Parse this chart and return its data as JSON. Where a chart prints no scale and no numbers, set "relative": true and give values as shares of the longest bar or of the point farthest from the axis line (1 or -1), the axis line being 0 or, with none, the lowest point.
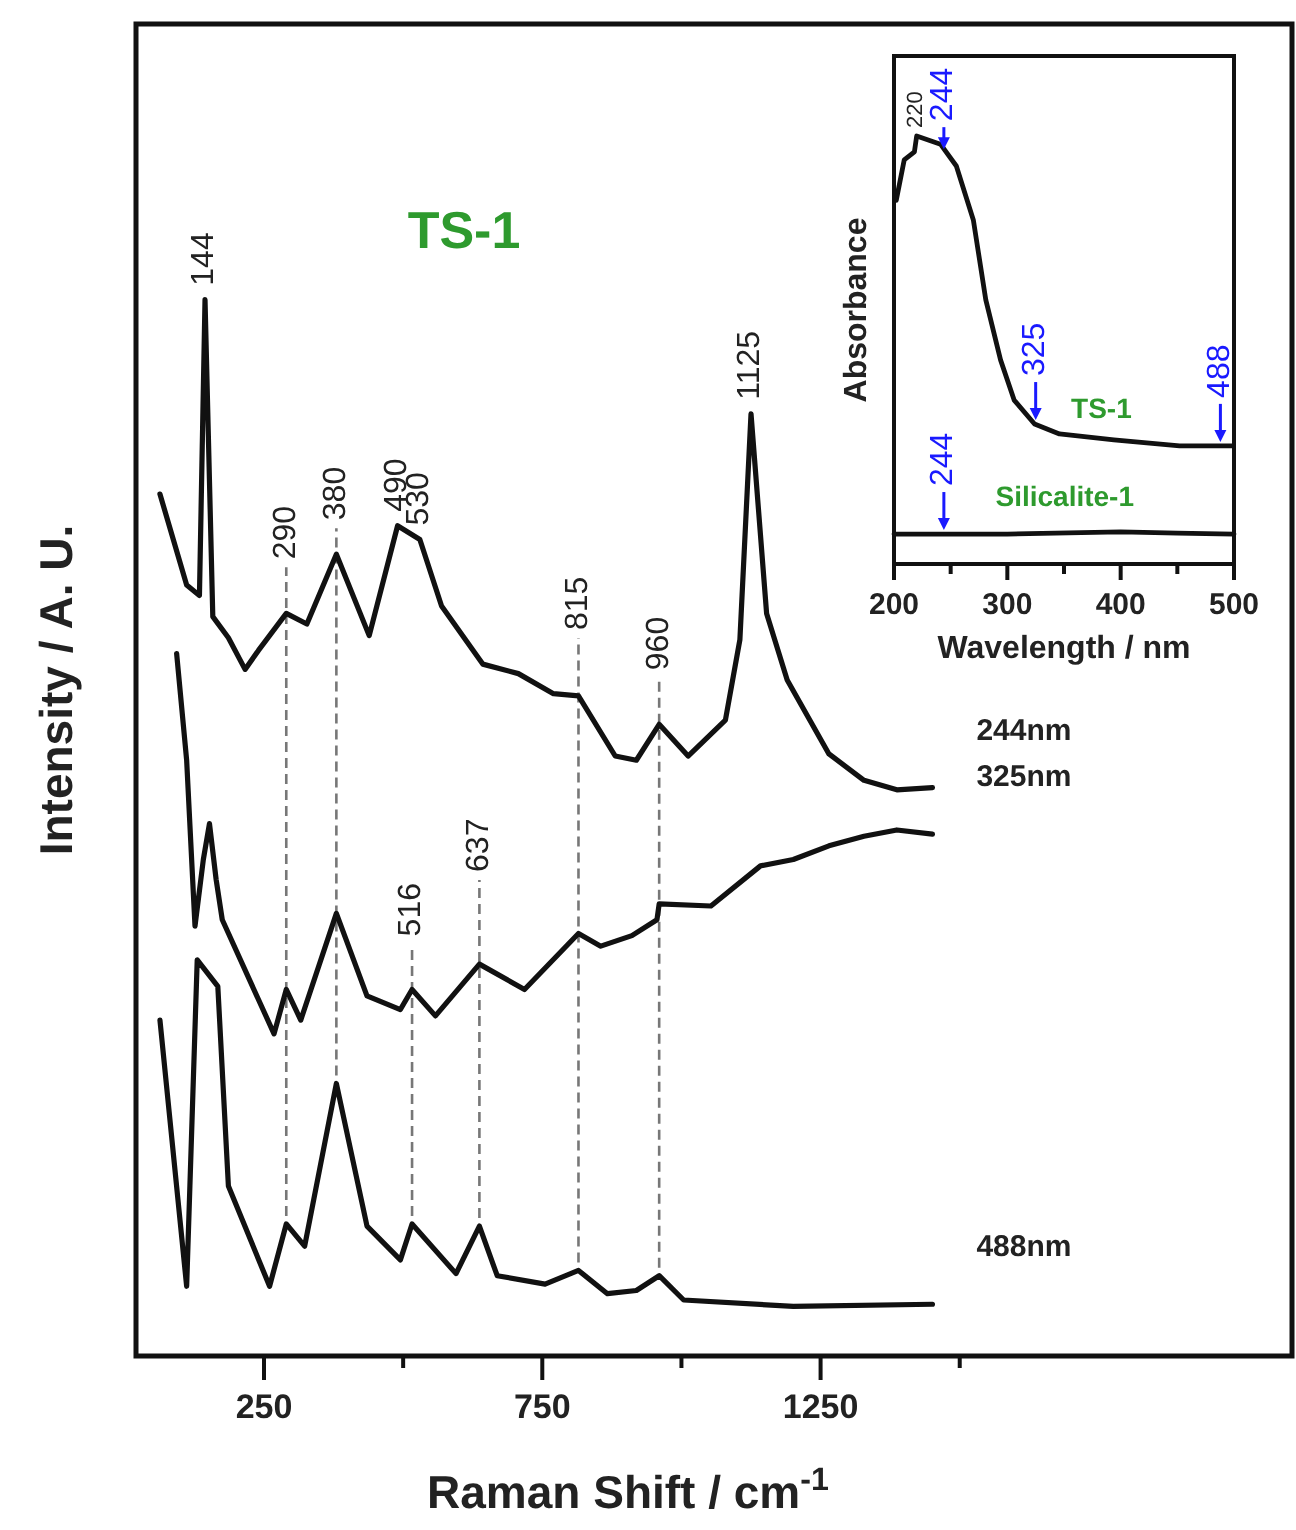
{
  "chart_data": [
    {
      "type": "line",
      "title": "TS-1",
      "xlabel": "Raman Shift / cm$^{-1}$",
      "ylabel": "Intensity / A. U.",
      "relative": true,
      "xlim": [
        20,
        2097
      ],
      "xticks": [
        250,
        {
          "value": 500,
          "label": null
        },
        750,
        {
          "value": 1000,
          "label": null
        },
        1250,
        {
          "value": 1500,
          "label": null
        }
      ],
      "series": [
        {
          "name": "244nm",
          "color": "#111111",
          "x": [
            63,
            111,
            134,
            144,
            158,
            186,
            216,
            240,
            290,
            327,
            380,
            439,
            490,
            530,
            569,
            643,
            707,
            770,
            815,
            881,
            919,
            960,
            1012,
            1079,
            1105,
            1125,
            1153,
            1190,
            1265,
            1328,
            1387,
            1451
          ],
          "values": [
            0.816,
            0.73,
            0.72,
            1.0,
            0.7,
            0.68,
            0.65,
            0.668,
            0.703,
            0.693,
            0.759,
            0.682,
            0.786,
            0.773,
            0.71,
            0.655,
            0.646,
            0.627,
            0.625,
            0.568,
            0.564,
            0.598,
            0.568,
            0.602,
            0.678,
            0.892,
            0.703,
            0.64,
            0.57,
            0.545,
            0.536,
            0.538
          ]
        },
        {
          "name": "325nm",
          "color": "#111111",
          "x": [
            93,
            111,
            126,
            141,
            152,
            164,
            175,
            268,
            290,
            316,
            380,
            435,
            495,
            516,
            558,
            637,
            718,
            815,
            855,
            911,
            956,
            960,
            1053,
            1142,
            1201,
            1265,
            1328,
            1387,
            1451
          ],
          "values": [
            0.665,
            0.564,
            0.407,
            0.47,
            0.504,
            0.451,
            0.413,
            0.305,
            0.347,
            0.318,
            0.419,
            0.341,
            0.328,
            0.347,
            0.322,
            0.371,
            0.347,
            0.4,
            0.388,
            0.398,
            0.413,
            0.428,
            0.426,
            0.464,
            0.47,
            0.483,
            0.492,
            0.498,
            0.494
          ]
        },
        {
          "name": "488nm",
          "color": "#111111",
          "x": [
            63,
            111,
            130,
            167,
            186,
            260,
            290,
            323,
            380,
            435,
            495,
            516,
            595,
            637,
            669,
            755,
            815,
            867,
            919,
            960,
            1004,
            1201,
            1451
          ],
          "values": [
            0.318,
            0.066,
            0.375,
            0.35,
            0.161,
            0.066,
            0.125,
            0.104,
            0.258,
            0.123,
            0.091,
            0.125,
            0.078,
            0.123,
            0.076,
            0.068,
            0.081,
            0.059,
            0.062,
            0.076,
            0.053,
            0.047,
            0.049
          ]
        }
      ],
      "annotations": [
        {
          "text": "144",
          "x": 144,
          "y": 1.0
        },
        {
          "text": "290",
          "x": 290,
          "y": 0.741
        },
        {
          "text": "380",
          "x": 380,
          "y": 0.778
        },
        {
          "text": "490",
          "x": 490,
          "y": 0.786
        },
        {
          "text": "530",
          "x": 530,
          "y": 0.773
        },
        {
          "text": "1125",
          "x": 1125,
          "y": 0.892
        },
        {
          "text": "815",
          "x": 815,
          "y": 0.674
        },
        {
          "text": "960",
          "x": 960,
          "y": 0.636
        },
        {
          "text": "516",
          "x": 516,
          "y": 0.384
        },
        {
          "text": "637",
          "x": 637,
          "y": 0.445
        }
      ],
      "ref_lines": [
        {
          "axis": "x",
          "value": 290,
          "line_style": "dashed"
        },
        {
          "axis": "x",
          "value": 380,
          "line_style": "dashed"
        },
        {
          "axis": "x",
          "value": 516,
          "line_style": "dashed"
        },
        {
          "axis": "x",
          "value": 637,
          "line_style": "dashed"
        },
        {
          "axis": "x",
          "value": 815,
          "line_style": "dashed"
        },
        {
          "axis": "x",
          "value": 960,
          "line_style": "dashed"
        }
      ]
    },
    {
      "type": "line",
      "xlabel": "Wavelength / nm",
      "ylabel": "Absorbance",
      "relative": true,
      "xlim": [
        200,
        500
      ],
      "xticks": [
        200,
        {
          "value": 250,
          "label": null
        },
        300,
        {
          "value": 350,
          "label": null
        },
        400,
        {
          "value": 450,
          "label": null
        },
        500
      ],
      "series": [
        {
          "name": "TS-1",
          "color": "#111111",
          "x": [
            202,
            209,
            218,
            220,
            241,
            255,
            270,
            281,
            294,
            306,
            324,
            346,
            394,
            452,
            498
          ],
          "values": [
            0.85,
            0.944,
            0.963,
            1.0,
            0.981,
            0.93,
            0.804,
            0.617,
            0.477,
            0.383,
            0.327,
            0.304,
            0.29,
            0.276,
            0.276
          ]
        },
        {
          "name": "Silicalite-1",
          "color": "#111111",
          "x": [
            200,
            300,
            400,
            450,
            500
          ],
          "values": [
            0.07,
            0.07,
            0.075,
            0.072,
            0.07
          ]
        }
      ],
      "annotations": [
        {
          "text": "220",
          "x": 220,
          "y": 1.0
        },
        {
          "text": "244",
          "x": 244,
          "y": 0.96
        },
        {
          "text": "325",
          "x": 325,
          "y": 0.327
        },
        {
          "text": "488",
          "x": 488,
          "y": 0.276
        },
        {
          "text": "244",
          "x": 244,
          "y": 0.07
        }
      ]
    }
  ]
}
